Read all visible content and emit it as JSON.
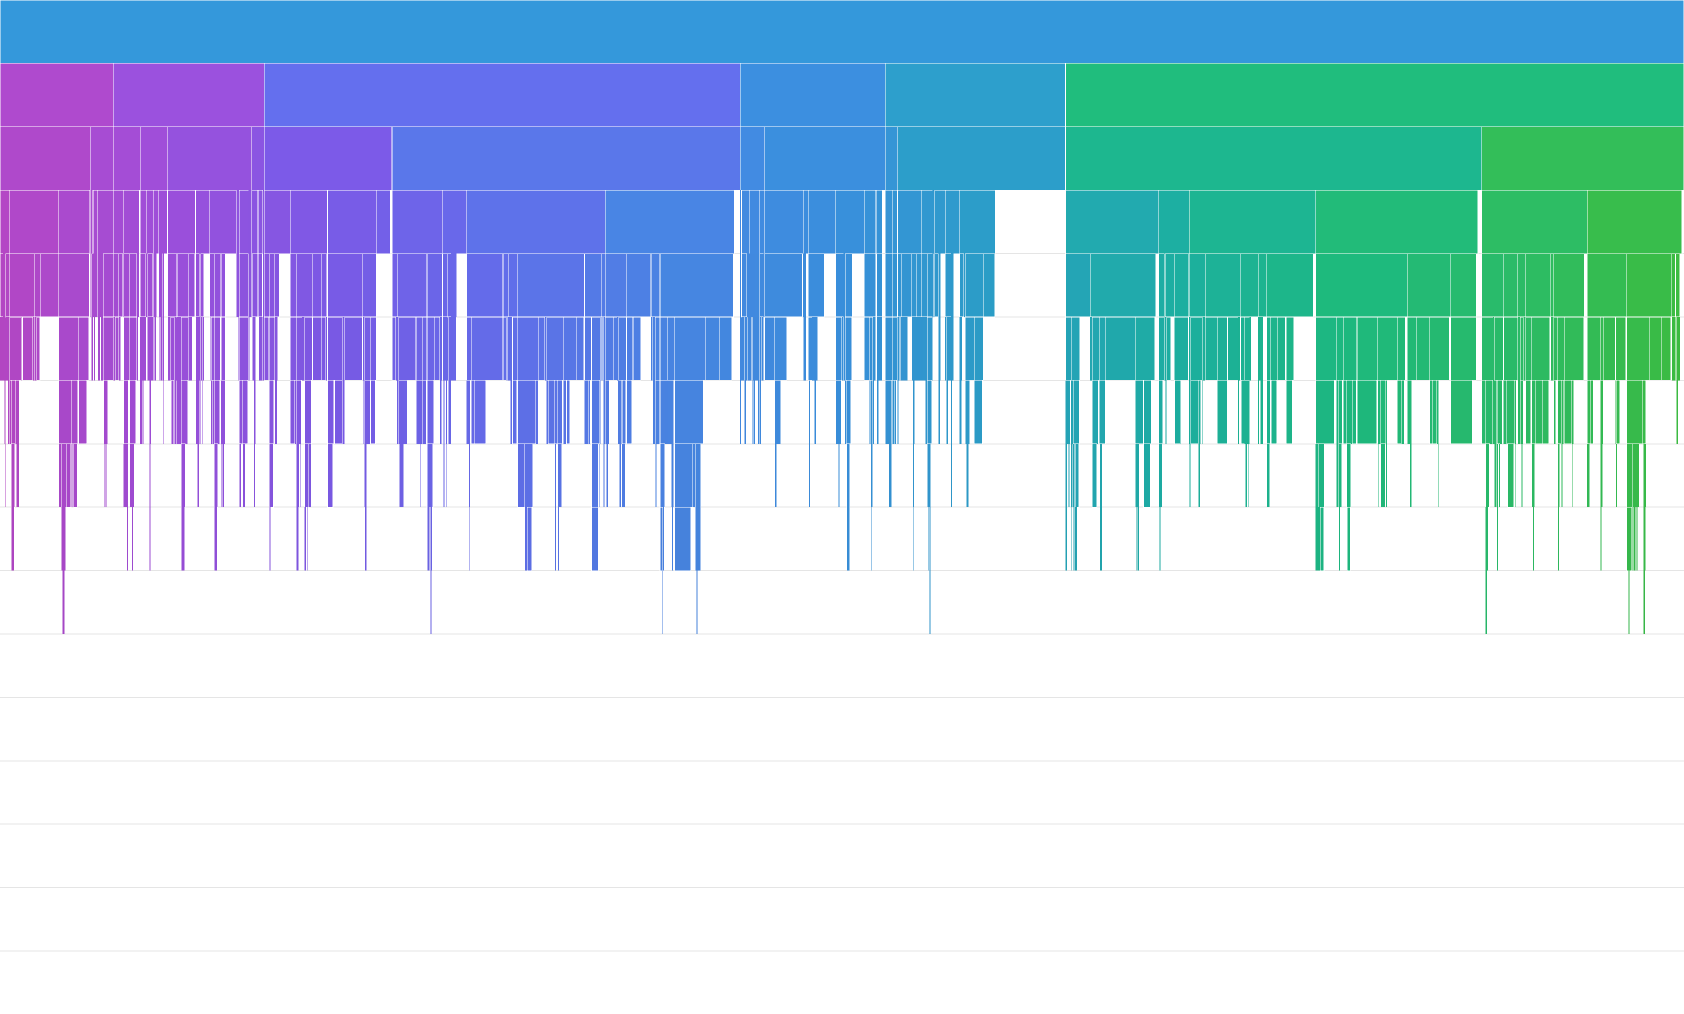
{
  "chart_data": {
    "type": "icicle",
    "title": "",
    "xlabel": "",
    "ylabel": "",
    "depth": 16,
    "legend": "none",
    "colors": {
      "root": "#3498DB",
      "gradient": [
        "#B848C8",
        "#A050DE",
        "#7C5CEB",
        "#6470F0",
        "#4A88E8",
        "#3A92E0",
        "#2AA3C8",
        "#1DB3A4",
        "#1EBE82",
        "#2CC06A",
        "#3EC142"
      ],
      "grid": "#E5E5E5",
      "background": "#FFFFFF"
    },
    "root": {
      "name": "",
      "value": 1000
    },
    "level1": [
      {
        "value": 67.3
      },
      {
        "value": 89.6
      },
      {
        "value": 282.6
      },
      {
        "value": 86.2
      },
      {
        "value": 107.0
      },
      {
        "value": 367.3
      }
    ],
    "level2": [
      {
        "value": 53.6,
        "parent": 0
      },
      {
        "value": 13.7,
        "parent": 0
      },
      {
        "value": 15.9,
        "parent": 1
      },
      {
        "value": 16.4,
        "parent": 1
      },
      {
        "value": 49.9,
        "parent": 1
      },
      {
        "value": 7.4,
        "parent": 1
      },
      {
        "value": 75.9,
        "parent": 2
      },
      {
        "value": 206.7,
        "parent": 2
      },
      {
        "value": 14.7,
        "parent": 3
      },
      {
        "value": 71.5,
        "parent": 3
      },
      {
        "value": 7.4,
        "parent": 4
      },
      {
        "value": 99.6,
        "parent": 4
      },
      {
        "value": 247.3,
        "parent": 5
      },
      {
        "value": 120.0,
        "parent": 5
      }
    ],
    "level3_major": [
      {
        "value": 72.8,
        "parent": 6
      },
      {
        "value": 17.2,
        "parent": 7
      },
      {
        "value": 134.6,
        "parent": 7
      },
      {
        "value": 55.1,
        "parent": 7
      },
      {
        "value": 70.8,
        "parent": 11
      },
      {
        "value": 114.2,
        "parent": 12
      },
      {
        "value": 133.1,
        "parent": 12
      },
      {
        "value": 66.3,
        "parent": 13
      }
    ],
    "deep_branches": [
      {
        "branch": "violet",
        "max_depth": 10
      },
      {
        "branch": "indigo",
        "max_depth": 11
      },
      {
        "branch": "blue",
        "max_depth": 11
      },
      {
        "branch": "cyan",
        "max_depth": 11
      },
      {
        "branch": "teal",
        "max_depth": 16
      },
      {
        "branch": "green",
        "max_depth": 14
      },
      {
        "branch": "lime",
        "max_depth": 11
      }
    ]
  }
}
